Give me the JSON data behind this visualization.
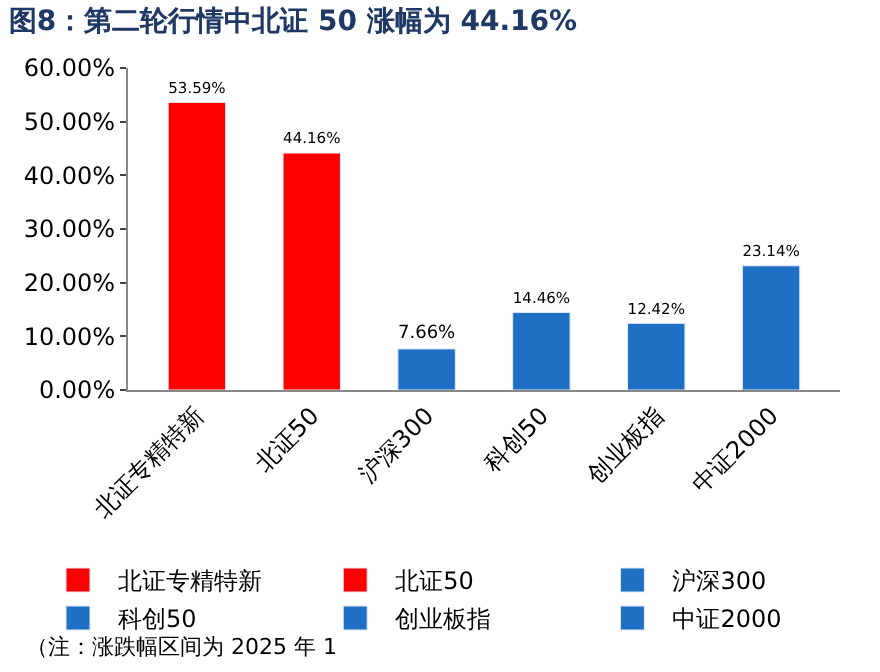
{
  "chart_data": {
    "type": "bar",
    "title": "图8：第二轮行情中北证 50 涨幅为 44.16%",
    "categories": [
      "北证专精特新",
      "北证50",
      "沪深300",
      "科创50",
      "创业板指",
      "中证2000"
    ],
    "series": [
      {
        "name": "北证专精特新",
        "color": "#ff0000",
        "values": [
          53.59,
          null,
          null,
          null,
          null,
          null
        ]
      },
      {
        "name": "北证50",
        "color": "#ff0000",
        "values": [
          null,
          44.16,
          null,
          null,
          null,
          null
        ]
      },
      {
        "name": "沪深300",
        "color": "#1f6fc5",
        "values": [
          null,
          null,
          7.66,
          null,
          null,
          null
        ]
      },
      {
        "name": "科创50",
        "color": "#1f6fc5",
        "values": [
          null,
          null,
          null,
          14.46,
          null,
          null
        ]
      },
      {
        "name": "创业板指",
        "color": "#1f6fc5",
        "values": [
          null,
          null,
          null,
          null,
          12.42,
          null
        ]
      },
      {
        "name": "中证2000",
        "color": "#1f6fc5",
        "values": [
          null,
          null,
          null,
          null,
          null,
          23.14
        ]
      }
    ],
    "value_labels": [
      "53.59%",
      "44.16%",
      "7.66%",
      "14.46%",
      "12.42%",
      "23.14%"
    ],
    "ylim": [
      0,
      60
    ],
    "yticks": [
      {
        "value": 0,
        "label": "0.00%"
      },
      {
        "value": 10,
        "label": "10.00%"
      },
      {
        "value": 20,
        "label": "20.00%"
      },
      {
        "value": 30,
        "label": "30.00%"
      },
      {
        "value": 40,
        "label": "40.00%"
      },
      {
        "value": 50,
        "label": "50.00%"
      },
      {
        "value": 60,
        "label": "60.00%"
      }
    ],
    "legend": "bottom",
    "annotations": [
      "（注：涨跌幅区间为 2025 年 1"
    ]
  }
}
